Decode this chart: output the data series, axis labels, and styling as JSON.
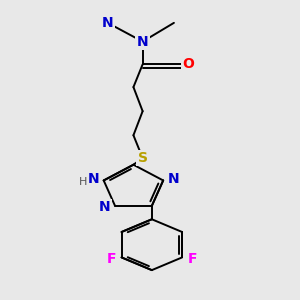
{
  "background_color": "#e8e8e8",
  "bond_color": "#000000",
  "N_color": "#0000cc",
  "O_color": "#ff0000",
  "S_color": "#b8a000",
  "F_color": "#ff00ff",
  "C_color": "#000000",
  "H_color": "#555555",
  "lw": 1.4,
  "fs": 10,
  "fs_small": 9,
  "xlim": [
    0.1,
    0.9
  ],
  "ylim": [
    -0.05,
    1.05
  ]
}
